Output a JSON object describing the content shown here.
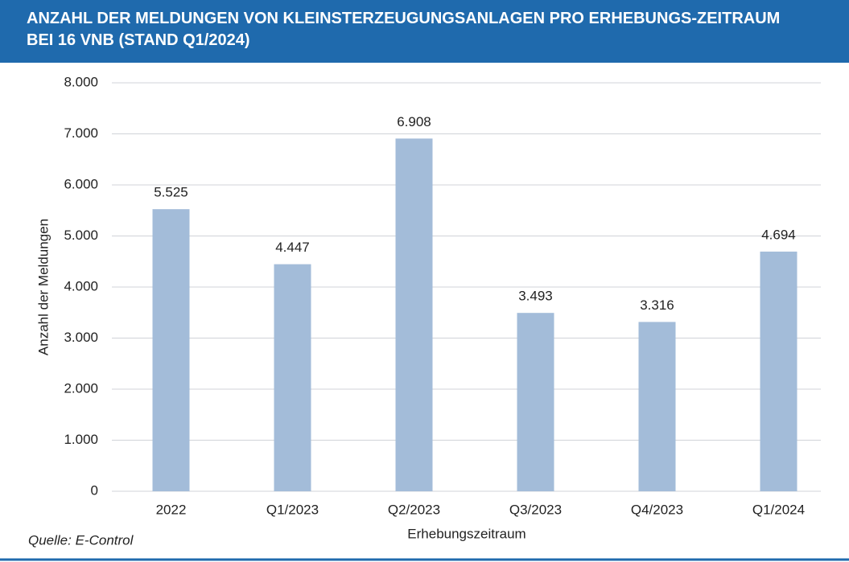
{
  "chart_data": {
    "type": "bar",
    "title": "ANZAHL DER MELDUNGEN VON KLEINSTERZEUGUNGSANLAGEN PRO ERHEBUNGS-ZEITRAUM BEI 16 VNB (STAND Q1/2024)",
    "categories": [
      "2022",
      "Q1/2023",
      "Q2/2023",
      "Q3/2023",
      "Q4/2023",
      "Q1/2024"
    ],
    "values": [
      5525,
      4447,
      6908,
      3493,
      3316,
      4694
    ],
    "value_labels": [
      "5.525",
      "4.447",
      "6.908",
      "3.493",
      "3.316",
      "4.694"
    ],
    "color": "#a3bcd9",
    "ylim": [
      0,
      8000
    ],
    "yticks": [
      0,
      {
        "value": 1000,
        "label": "1.000"
      },
      {
        "value": 2000,
        "label": "2.000"
      },
      {
        "value": 3000,
        "label": "3.000"
      },
      {
        "value": 4000,
        "label": "4.000"
      },
      {
        "value": 5000,
        "label": "5.000"
      },
      {
        "value": 6000,
        "label": "6.000"
      },
      {
        "value": 7000,
        "label": "7.000"
      },
      {
        "value": 8000,
        "label": "8.000"
      }
    ],
    "grid": true,
    "ylabel": "Anzahl der Meldungen",
    "xlabel": "Erhebungszeitraum",
    "source": "Quelle: E-Control"
  }
}
